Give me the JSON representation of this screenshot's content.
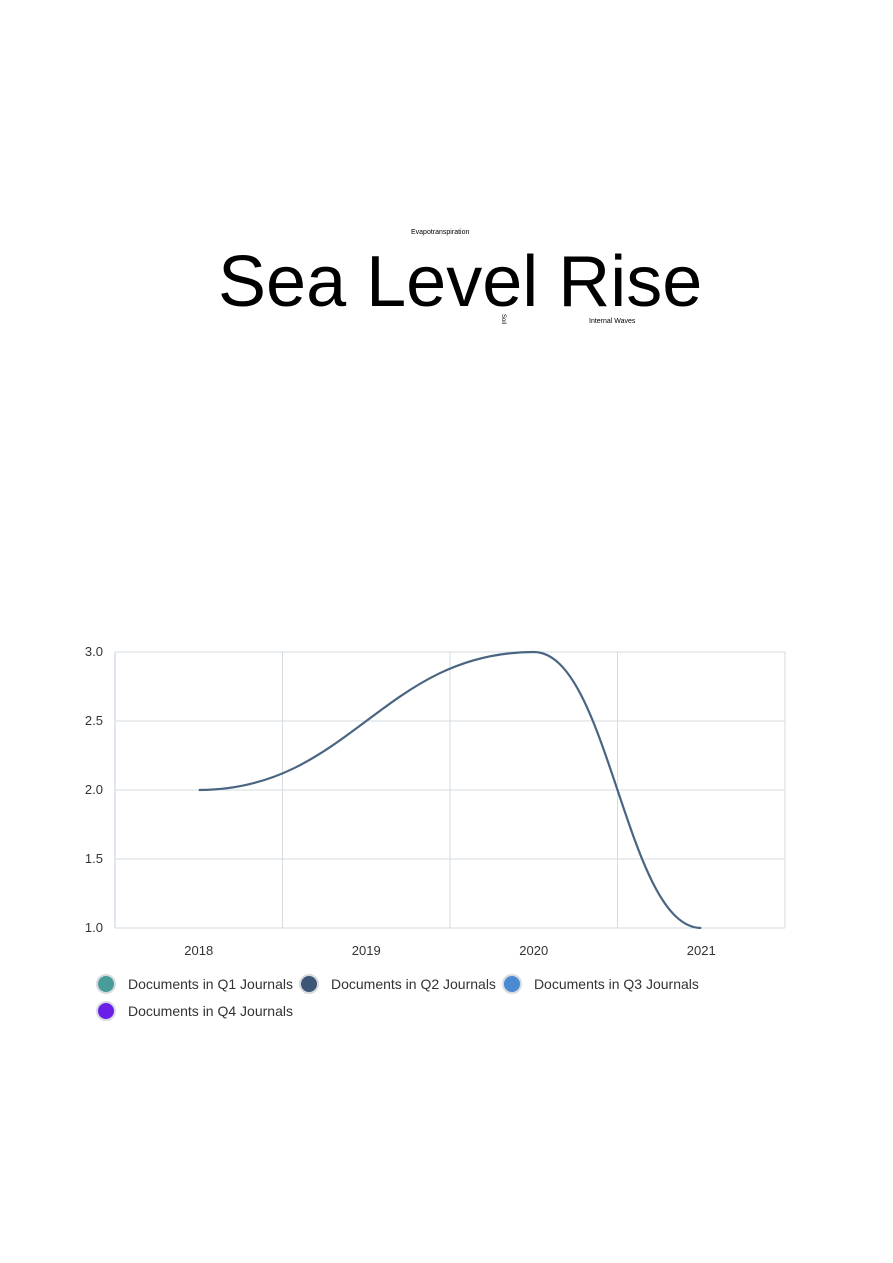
{
  "word_cloud": {
    "main": "Sea Level Rise",
    "top_small": "Evapotranspiration",
    "right_small": "Internal Waves",
    "vertical_small": "Soil"
  },
  "chart_data": {
    "type": "line",
    "title": "",
    "xlabel": "",
    "ylabel": "",
    "categories": [
      "2018",
      "2019",
      "2020",
      "2021"
    ],
    "x": [
      2018,
      2019,
      2020,
      2021
    ],
    "ylim": [
      1.0,
      3.0
    ],
    "yticks": [
      "1.0",
      "1.5",
      "2.0",
      "2.5",
      "3.0"
    ],
    "grid": true,
    "legend_position": "bottom-left",
    "series": [
      {
        "name": "Documents in Q2 Journals",
        "values": [
          2,
          null,
          3,
          1
        ],
        "color": "#4a6582"
      }
    ],
    "legend": [
      {
        "name": "Documents in Q1 Journals",
        "color": "#4a9b9b"
      },
      {
        "name": "Documents in Q2 Journals",
        "color": "#3d5676"
      },
      {
        "name": "Documents in Q3 Journals",
        "color": "#4a8ad0"
      },
      {
        "name": "Documents in Q4 Journals",
        "color": "#6a1fe8"
      }
    ]
  }
}
